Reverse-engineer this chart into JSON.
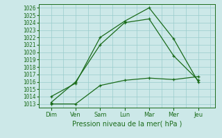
{
  "x_labels": [
    "Dim",
    "Ven",
    "Sam",
    "Lun",
    "Mar",
    "Mer",
    "Jeu"
  ],
  "x_positions": [
    0,
    1,
    2,
    3,
    4,
    5,
    6
  ],
  "ylim": [
    1012.5,
    1026.5
  ],
  "yticks": [
    1013,
    1014,
    1015,
    1016,
    1017,
    1018,
    1019,
    1020,
    1021,
    1022,
    1023,
    1024,
    1025,
    1026
  ],
  "line_color": "#1a6b1a",
  "marker": "+",
  "bg_color": "#cce8e8",
  "grid_color": "#99cccc",
  "xlabel": "Pression niveau de la mer( hPa )",
  "xlabel_color": "#1a6b1a",
  "tick_color": "#1a6b1a",
  "series": [
    {
      "x": [
        0,
        1,
        2,
        3,
        4,
        5,
        6
      ],
      "y": [
        1014.0,
        1015.8,
        1022.0,
        1024.2,
        1026.0,
        1021.8,
        1016.0
      ]
    },
    {
      "x": [
        0,
        1,
        2,
        3,
        4,
        5,
        6
      ],
      "y": [
        1013.2,
        1016.0,
        1021.0,
        1024.0,
        1024.5,
        1019.5,
        1016.2
      ]
    },
    {
      "x": [
        0,
        1,
        2,
        3,
        4,
        5,
        6
      ],
      "y": [
        1013.0,
        1013.0,
        1015.5,
        1016.2,
        1016.5,
        1016.3,
        1016.7
      ]
    }
  ]
}
